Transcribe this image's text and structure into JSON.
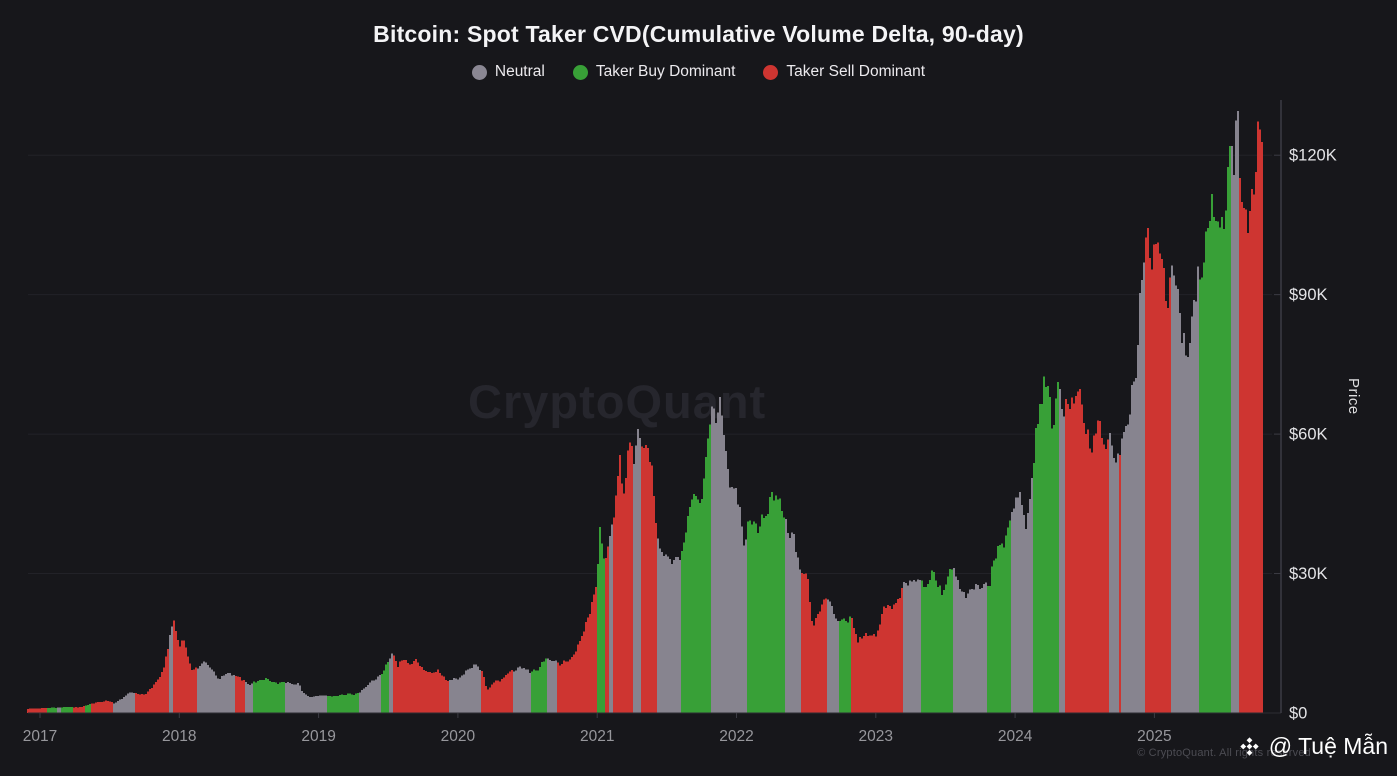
{
  "title": "Bitcoin: Spot Taker CVD(Cumulative Volume Delta, 90-day)",
  "legend": [
    {
      "label": "Neutral",
      "state": "neutral",
      "color": "#8a8793"
    },
    {
      "label": "Taker Buy Dominant",
      "state": "buy",
      "color": "#38a037"
    },
    {
      "label": "Taker Sell Dominant",
      "state": "sell",
      "color": "#ce3531"
    }
  ],
  "watermark": "CryptoQuant",
  "footer": {
    "copyright": "© CryptoQuant. All rights reserved",
    "handle": "@ Tuệ Mẫn",
    "logo": "binance-diamond-icon"
  },
  "colors": {
    "background": "#17171b",
    "bar_neutral": "#87848f",
    "bar_buy": "#38a037",
    "bar_sell": "#ce3531",
    "grid": "#222228",
    "axis": "#3c3c44",
    "baseline": "#2c2c33",
    "y_tick_label": "#e4e4e7",
    "x_tick_label": "#97979c"
  },
  "chart_data": {
    "type": "bar",
    "title": "Bitcoin: Spot Taker CVD(Cumulative Volume Delta, 90-day)",
    "xlabel": "",
    "ylabel": "Price",
    "unit": "USD thousands",
    "ylim": [
      0,
      132
    ],
    "xlim_years": [
      2016.91,
      2025.78
    ],
    "grid": "horizontal-faint",
    "legend_position": "top-center",
    "y_ticks": [
      {
        "label": "$0",
        "value": 0
      },
      {
        "label": "$30K",
        "value": 30
      },
      {
        "label": "$60K",
        "value": 60
      },
      {
        "label": "$90K",
        "value": 90
      },
      {
        "label": "$120K",
        "value": 120
      }
    ],
    "x_ticks": [
      2017,
      2018,
      2019,
      2020,
      2021,
      2022,
      2023,
      2024,
      2025
    ],
    "price_keyframes": [
      [
        2016.91,
        0.9
      ],
      [
        2017.0,
        1.0
      ],
      [
        2017.1,
        1.15
      ],
      [
        2017.2,
        1.25
      ],
      [
        2017.3,
        1.3
      ],
      [
        2017.36,
        1.9
      ],
      [
        2017.42,
        2.4
      ],
      [
        2017.48,
        2.6
      ],
      [
        2017.53,
        2.1
      ],
      [
        2017.6,
        3.4
      ],
      [
        2017.65,
        4.4
      ],
      [
        2017.7,
        4.2
      ],
      [
        2017.75,
        4.0
      ],
      [
        2017.8,
        5.2
      ],
      [
        2017.85,
        7.2
      ],
      [
        2017.89,
        9.8
      ],
      [
        2017.93,
        16.0
      ],
      [
        2017.96,
        19.3
      ],
      [
        2018.0,
        14.2
      ],
      [
        2018.03,
        16.8
      ],
      [
        2018.09,
        8.9
      ],
      [
        2018.13,
        9.5
      ],
      [
        2018.18,
        11.4
      ],
      [
        2018.24,
        9.2
      ],
      [
        2018.28,
        7.0
      ],
      [
        2018.35,
        8.8
      ],
      [
        2018.43,
        7.5
      ],
      [
        2018.5,
        6.4
      ],
      [
        2018.57,
        6.8
      ],
      [
        2018.63,
        7.4
      ],
      [
        2018.7,
        6.4
      ],
      [
        2018.79,
        6.5
      ],
      [
        2018.86,
        6.3
      ],
      [
        2018.89,
        4.2
      ],
      [
        2018.95,
        3.4
      ],
      [
        2019.0,
        3.8
      ],
      [
        2019.08,
        3.6
      ],
      [
        2019.17,
        3.9
      ],
      [
        2019.26,
        4.1
      ],
      [
        2019.33,
        5.2
      ],
      [
        2019.4,
        7.2
      ],
      [
        2019.46,
        8.6
      ],
      [
        2019.5,
        11.0
      ],
      [
        2019.53,
        12.9
      ],
      [
        2019.57,
        10.4
      ],
      [
        2019.61,
        11.9
      ],
      [
        2019.66,
        10.1
      ],
      [
        2019.7,
        11.3
      ],
      [
        2019.76,
        9.5
      ],
      [
        2019.81,
        8.1
      ],
      [
        2019.86,
        9.3
      ],
      [
        2019.92,
        7.1
      ],
      [
        2020.0,
        7.2
      ],
      [
        2020.06,
        9.2
      ],
      [
        2020.12,
        10.2
      ],
      [
        2020.18,
        8.8
      ],
      [
        2020.21,
        4.9
      ],
      [
        2020.26,
        6.6
      ],
      [
        2020.31,
        6.9
      ],
      [
        2020.37,
        8.9
      ],
      [
        2020.45,
        9.6
      ],
      [
        2020.52,
        9.1
      ],
      [
        2020.58,
        9.4
      ],
      [
        2020.63,
        11.6
      ],
      [
        2020.68,
        11.7
      ],
      [
        2020.73,
        10.4
      ],
      [
        2020.79,
        10.9
      ],
      [
        2020.84,
        13.2
      ],
      [
        2020.88,
        15.8
      ],
      [
        2020.93,
        19.4
      ],
      [
        2020.97,
        24.5
      ],
      [
        2021.0,
        29.5
      ],
      [
        2021.02,
        40.0
      ],
      [
        2021.06,
        31.8
      ],
      [
        2021.1,
        38.5
      ],
      [
        2021.14,
        48.0
      ],
      [
        2021.16,
        57.2
      ],
      [
        2021.19,
        45.8
      ],
      [
        2021.23,
        56.5
      ],
      [
        2021.27,
        55.5
      ],
      [
        2021.3,
        63.8
      ],
      [
        2021.33,
        57.5
      ],
      [
        2021.37,
        55.0
      ],
      [
        2021.4,
        49.5
      ],
      [
        2021.44,
        37.0
      ],
      [
        2021.5,
        33.5
      ],
      [
        2021.55,
        31.5
      ],
      [
        2021.6,
        34.5
      ],
      [
        2021.65,
        41.8
      ],
      [
        2021.7,
        46.5
      ],
      [
        2021.73,
        43.5
      ],
      [
        2021.77,
        51.5
      ],
      [
        2021.8,
        61.0
      ],
      [
        2021.83,
        66.0
      ],
      [
        2021.86,
        62.5
      ],
      [
        2021.89,
        68.0
      ],
      [
        2021.93,
        56.5
      ],
      [
        2021.97,
        46.8
      ],
      [
        2022.0,
        46.5
      ],
      [
        2022.06,
        36.8
      ],
      [
        2022.1,
        43.5
      ],
      [
        2022.15,
        38.8
      ],
      [
        2022.2,
        42.5
      ],
      [
        2022.25,
        47.2
      ],
      [
        2022.3,
        45.2
      ],
      [
        2022.36,
        40.0
      ],
      [
        2022.41,
        38.6
      ],
      [
        2022.46,
        29.8
      ],
      [
        2022.51,
        29.2
      ],
      [
        2022.55,
        19.0
      ],
      [
        2022.59,
        21.4
      ],
      [
        2022.64,
        24.0
      ],
      [
        2022.69,
        23.2
      ],
      [
        2022.73,
        19.8
      ],
      [
        2022.79,
        19.6
      ],
      [
        2022.83,
        20.4
      ],
      [
        2022.87,
        15.8
      ],
      [
        2022.93,
        16.4
      ],
      [
        2023.0,
        16.6
      ],
      [
        2023.06,
        23.0
      ],
      [
        2023.11,
        21.8
      ],
      [
        2023.16,
        24.8
      ],
      [
        2023.21,
        28.2
      ],
      [
        2023.26,
        27.5
      ],
      [
        2023.31,
        29.8
      ],
      [
        2023.36,
        27.4
      ],
      [
        2023.42,
        30.2
      ],
      [
        2023.47,
        26.1
      ],
      [
        2023.53,
        30.6
      ],
      [
        2023.58,
        29.0
      ],
      [
        2023.64,
        25.7
      ],
      [
        2023.7,
        26.2
      ],
      [
        2023.76,
        27.5
      ],
      [
        2023.82,
        28.5
      ],
      [
        2023.87,
        34.8
      ],
      [
        2023.93,
        37.6
      ],
      [
        2023.98,
        43.8
      ],
      [
        2024.03,
        46.8
      ],
      [
        2024.08,
        39.8
      ],
      [
        2024.12,
        51.5
      ],
      [
        2024.16,
        61.8
      ],
      [
        2024.2,
        68.0
      ],
      [
        2024.23,
        73.2
      ],
      [
        2024.27,
        62.0
      ],
      [
        2024.3,
        69.8
      ],
      [
        2024.35,
        63.8
      ],
      [
        2024.4,
        67.2
      ],
      [
        2024.45,
        70.4
      ],
      [
        2024.5,
        60.0
      ],
      [
        2024.55,
        56.8
      ],
      [
        2024.6,
        64.8
      ],
      [
        2024.64,
        54.2
      ],
      [
        2024.68,
        60.8
      ],
      [
        2024.72,
        54.0
      ],
      [
        2024.76,
        58.6
      ],
      [
        2024.8,
        60.4
      ],
      [
        2024.83,
        66.4
      ],
      [
        2024.86,
        72.5
      ],
      [
        2024.89,
        87.5
      ],
      [
        2024.92,
        98.0
      ],
      [
        2024.95,
        104.0
      ],
      [
        2024.98,
        95.8
      ],
      [
        2025.0,
        101.5
      ],
      [
        2025.03,
        106.5
      ],
      [
        2025.06,
        96.8
      ],
      [
        2025.1,
        87.5
      ],
      [
        2025.14,
        96.0
      ],
      [
        2025.17,
        91.2
      ],
      [
        2025.2,
        83.0
      ],
      [
        2025.24,
        76.5
      ],
      [
        2025.28,
        85.2
      ],
      [
        2025.31,
        93.5
      ],
      [
        2025.34,
        97.2
      ],
      [
        2025.38,
        104.5
      ],
      [
        2025.41,
        111.0
      ],
      [
        2025.44,
        101.8
      ],
      [
        2025.47,
        105.5
      ],
      [
        2025.5,
        108.8
      ],
      [
        2025.53,
        119.0
      ],
      [
        2025.55,
        122.5
      ],
      [
        2025.57,
        116.0
      ],
      [
        2025.6,
        124.2
      ],
      [
        2025.63,
        112.2
      ],
      [
        2025.66,
        110.2
      ],
      [
        2025.69,
        108.4
      ],
      [
        2025.72,
        114.6
      ],
      [
        2025.75,
        125.2
      ],
      [
        2025.78,
        120.5
      ]
    ],
    "state_spans": [
      [
        2021.09,
        2021.108,
        "neutral"
      ],
      [
        2024.752,
        2024.764,
        "sell"
      ],
      [
        2016.91,
        2017.05,
        "sell"
      ],
      [
        2017.05,
        2017.115,
        "buy"
      ],
      [
        2017.115,
        2017.144,
        "neutral"
      ],
      [
        2017.144,
        2017.237,
        "buy"
      ],
      [
        2017.237,
        2017.316,
        "sell"
      ],
      [
        2017.316,
        2017.366,
        "buy"
      ],
      [
        2017.366,
        2017.517,
        "sell"
      ],
      [
        2017.517,
        2017.682,
        "neutral"
      ],
      [
        2017.682,
        2017.919,
        "sell"
      ],
      [
        2017.919,
        2017.948,
        "neutral"
      ],
      [
        2017.948,
        2018.134,
        "sell"
      ],
      [
        2018.134,
        2018.4,
        "neutral"
      ],
      [
        2018.4,
        2018.472,
        "sell"
      ],
      [
        2018.472,
        2018.522,
        "neutral"
      ],
      [
        2018.522,
        2018.759,
        "buy"
      ],
      [
        2018.759,
        2019.06,
        "neutral"
      ],
      [
        2019.06,
        2019.297,
        "buy"
      ],
      [
        2019.297,
        2019.448,
        "neutral"
      ],
      [
        2019.448,
        2019.505,
        "buy"
      ],
      [
        2019.505,
        2019.534,
        "neutral"
      ],
      [
        2019.534,
        2019.943,
        "sell"
      ],
      [
        2019.943,
        2020.166,
        "neutral"
      ],
      [
        2020.166,
        2020.395,
        "sell"
      ],
      [
        2020.395,
        2020.525,
        "neutral"
      ],
      [
        2020.525,
        2020.639,
        "buy"
      ],
      [
        2020.639,
        2020.711,
        "neutral"
      ],
      [
        2020.711,
        2021.005,
        "sell"
      ],
      [
        2021.005,
        2021.056,
        "buy"
      ],
      [
        2021.056,
        2021.257,
        "sell"
      ],
      [
        2021.257,
        2021.314,
        "neutral"
      ],
      [
        2021.314,
        2021.436,
        "sell"
      ],
      [
        2021.436,
        2021.601,
        "neutral"
      ],
      [
        2021.601,
        2021.824,
        "buy"
      ],
      [
        2021.824,
        2022.082,
        "neutral"
      ],
      [
        2022.082,
        2022.355,
        "buy"
      ],
      [
        2022.355,
        2022.47,
        "neutral"
      ],
      [
        2022.47,
        2022.649,
        "sell"
      ],
      [
        2022.649,
        2022.735,
        "neutral"
      ],
      [
        2022.735,
        2022.829,
        "buy"
      ],
      [
        2022.829,
        2023.195,
        "sell"
      ],
      [
        2023.195,
        2023.324,
        "neutral"
      ],
      [
        2023.324,
        2023.554,
        "buy"
      ],
      [
        2023.554,
        2023.805,
        "neutral"
      ],
      [
        2023.805,
        2023.977,
        "buy"
      ],
      [
        2023.977,
        2024.128,
        "neutral"
      ],
      [
        2024.128,
        2024.322,
        "buy"
      ],
      [
        2024.322,
        2024.365,
        "neutral"
      ],
      [
        2024.365,
        2024.681,
        "sell"
      ],
      [
        2024.681,
        2024.939,
        "neutral"
      ],
      [
        2024.939,
        2025.126,
        "sell"
      ],
      [
        2025.126,
        2025.327,
        "neutral"
      ],
      [
        2025.327,
        2025.556,
        "buy"
      ],
      [
        2025.556,
        2025.614,
        "neutral"
      ],
      [
        2025.614,
        2025.78,
        "sell"
      ]
    ]
  }
}
